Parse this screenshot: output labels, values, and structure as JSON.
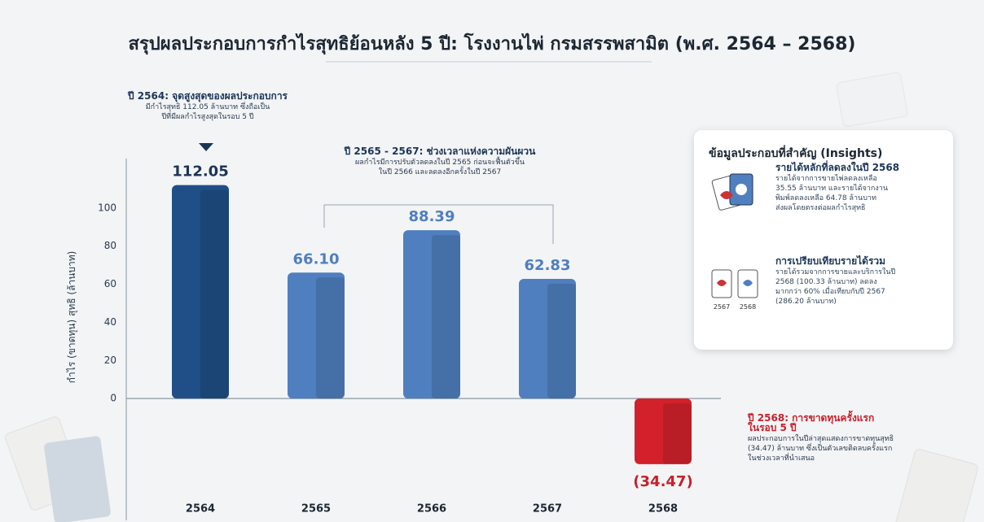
{
  "chart_data": {
    "type": "bar",
    "title": "สรุปผลประกอบการกำไรสุทธิย้อนหลัง 5 ปี: โรงงานไพ่ กรมสรรพสามิต (พ.ศ. 2564 – 2568)",
    "y_label": "กำไร (ขาดทุน) สุทธิ (ล้านบาท)",
    "categories": [
      "2564",
      "2565",
      "2566",
      "2567",
      "2568"
    ],
    "values": [
      112.05,
      66.1,
      88.39,
      62.83,
      -34.47
    ],
    "value_labels": [
      "112.05",
      "66.10",
      "88.39",
      "62.83",
      "(34.47)"
    ],
    "colors": [
      "#1f4f86",
      "#4f7fbf",
      "#4f7fbf",
      "#4f7fbf",
      "#d3212b"
    ],
    "ylim": [
      -64,
      126
    ],
    "yticks": [
      0,
      20,
      40,
      60,
      80,
      100
    ],
    "grid": false,
    "annotations": [
      {
        "title": "ปี 2564: จุดสูงสุดของผลประกอบการ",
        "lines": [
          "มีกำไรสุทธิ 112.05 ล้านบาท ซึ่งถือเป็น",
          "ปีที่มีผลกำไรสูงสุดในรอบ 5 ปี"
        ]
      },
      {
        "title": "ปี 2565 - 2567: ช่วงเวลาแห่งความผันผวน",
        "lines": [
          "ผลกำไรมีการปรับตัวลดลงในปี 2565 ก่อนจะฟื้นตัวขึ้น",
          "ในปี 2566 และลดลงอีกครั้งในปี 2567"
        ]
      },
      {
        "title": "ปี 2568: การขาดทุนครั้งแรก ในรอบ 5 ปี",
        "lines": [
          "ผลประกอบการในปีล่าสุดแสดงการขาดทุนสุทธิ",
          "(34.47) ล้านบาท ซึ่งเป็นตัวเลขติดลบครั้งแรก",
          "ในช่วงเวลาที่นำเสนอ"
        ]
      }
    ]
  },
  "insights": {
    "title": "ข้อมูลประกอบที่สำคัญ (Insights)",
    "items": [
      {
        "title": "รายได้หลักที่ลดลงในปี 2568",
        "lines": [
          "รายได้จากการขายไพ่ลดลงเหลือ",
          "35.55 ล้านบาท และรายได้จากงาน",
          "พิมพ์ลดลงเหลือ 64.78 ล้านบาท",
          "ส่งผลโดยตรงต่อผลกำไรสุทธิ"
        ]
      },
      {
        "title": "การเปรียบเทียบรายได้รวม",
        "lines": [
          "รายได้รวมจากการขายและบริการในปี",
          "2568 (100.33 ล้านบาท) ลดลง",
          "มากกว่า 60% เมื่อเทียบกับปี 2567",
          "(286.20 ล้านบาท)"
        ]
      }
    ],
    "icon_labels": [
      "2567",
      "2568"
    ]
  }
}
